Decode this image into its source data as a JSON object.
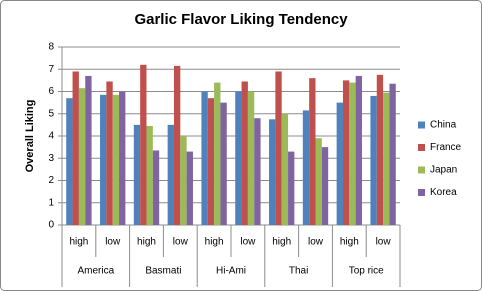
{
  "chart_data": {
    "type": "bar",
    "title": "Garlic Flavor Liking Tendency",
    "y_label": "Overall Liking",
    "categories": [
      "high",
      "low",
      "high",
      "low",
      "high",
      "low",
      "high",
      "low",
      "high",
      "low"
    ],
    "category_groups": [
      "America",
      "Basmati",
      "Hi-Ami",
      "Thai",
      "Top rice"
    ],
    "series": [
      {
        "name": "China",
        "color": "#4f81bd",
        "values": [
          5.7,
          5.85,
          4.5,
          4.5,
          6.0,
          6.0,
          4.75,
          5.15,
          5.5,
          5.8
        ]
      },
      {
        "name": "France",
        "color": "#c0504d",
        "values": [
          6.9,
          6.45,
          7.2,
          7.15,
          5.7,
          6.45,
          6.9,
          6.6,
          6.5,
          6.75
        ]
      },
      {
        "name": "Japan",
        "color": "#9bbb59",
        "values": [
          6.15,
          5.85,
          4.45,
          4.0,
          6.4,
          6.0,
          5.0,
          3.9,
          6.4,
          5.95
        ]
      },
      {
        "name": "Korea",
        "color": "#8064a2",
        "values": [
          6.7,
          6.0,
          3.35,
          3.3,
          5.5,
          4.8,
          3.3,
          3.5,
          6.7,
          6.35
        ]
      }
    ],
    "ylim": [
      0,
      8
    ],
    "yticks": [
      0,
      1,
      2,
      3,
      4,
      5,
      6,
      7,
      8
    ],
    "grid": true,
    "legend": "right"
  }
}
